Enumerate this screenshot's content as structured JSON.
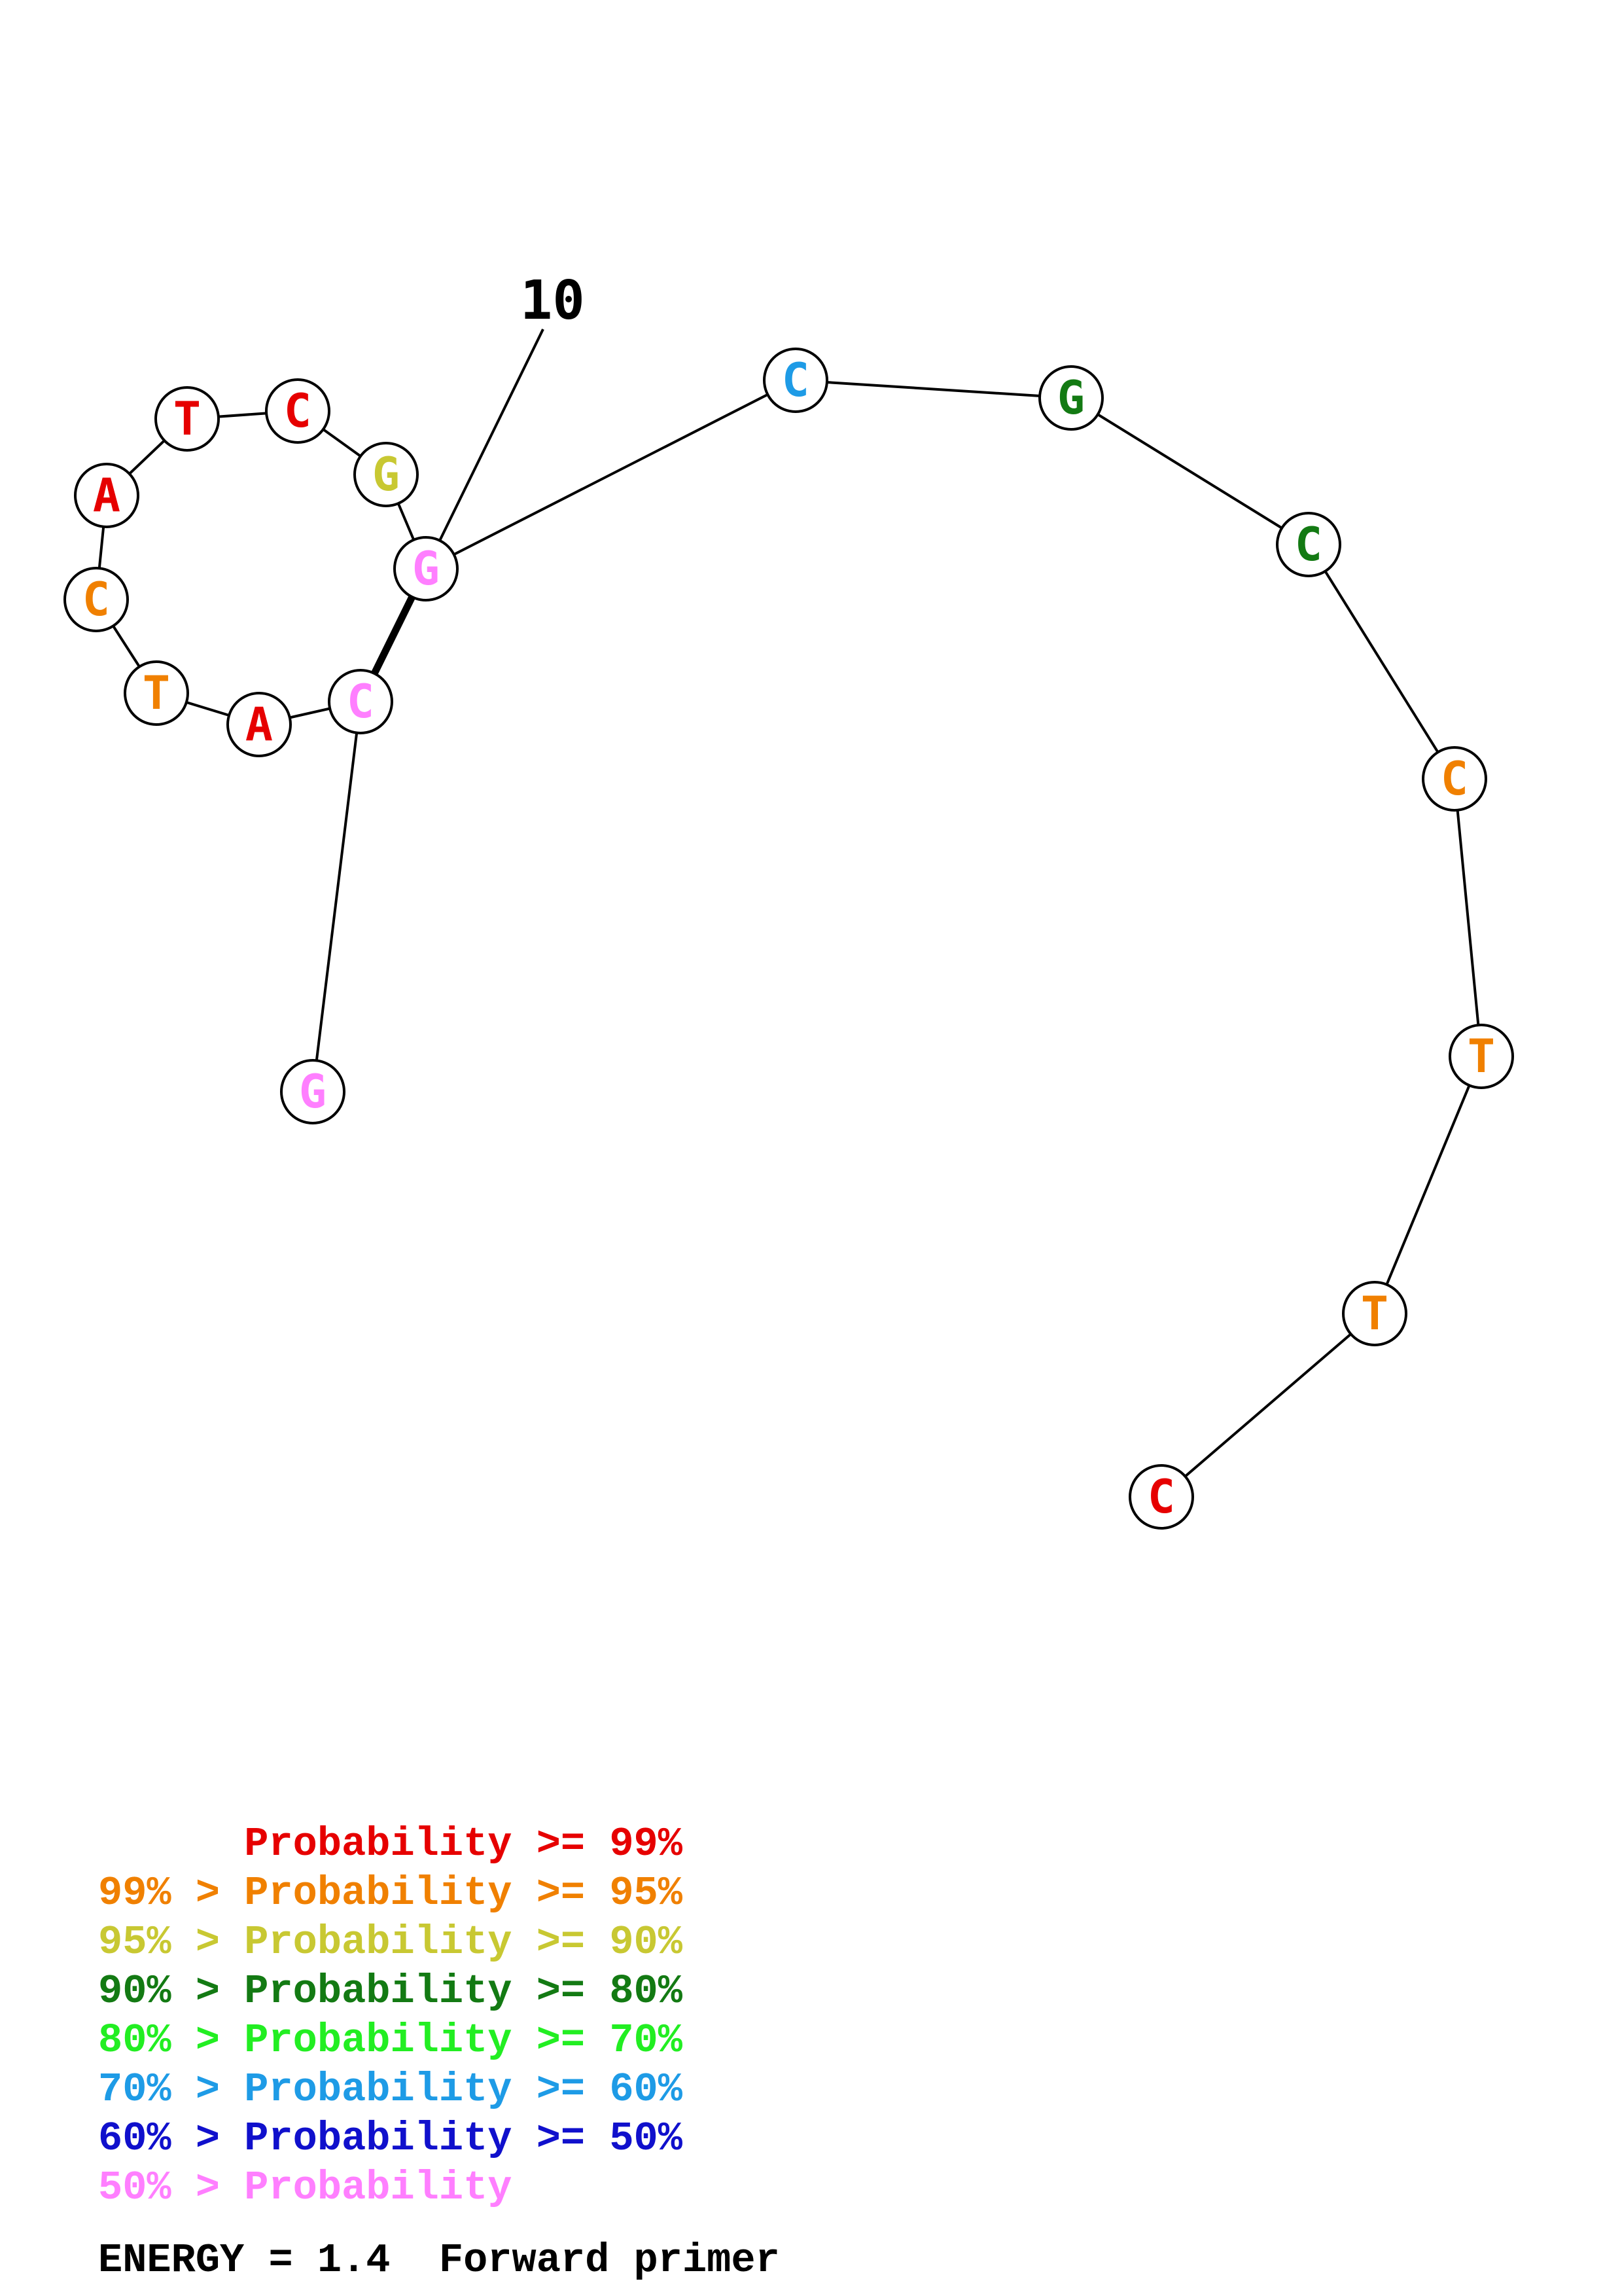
{
  "structure": {
    "position_label": "10",
    "nucleotides": [
      {
        "index": 1,
        "base": "G",
        "color": "#ff7fff"
      },
      {
        "index": 2,
        "base": "C",
        "color": "#ff7fff"
      },
      {
        "index": 3,
        "base": "A",
        "color": "#e60000"
      },
      {
        "index": 4,
        "base": "T",
        "color": "#f08000"
      },
      {
        "index": 5,
        "base": "C",
        "color": "#f08000"
      },
      {
        "index": 6,
        "base": "A",
        "color": "#e60000"
      },
      {
        "index": 7,
        "base": "T",
        "color": "#e60000"
      },
      {
        "index": 8,
        "base": "C",
        "color": "#e60000"
      },
      {
        "index": 9,
        "base": "G",
        "color": "#c8c832"
      },
      {
        "index": 10,
        "base": "G",
        "color": "#ff7fff"
      },
      {
        "index": 11,
        "base": "C",
        "color": "#1e9be6"
      },
      {
        "index": 12,
        "base": "G",
        "color": "#137a13"
      },
      {
        "index": 13,
        "base": "C",
        "color": "#137a13"
      },
      {
        "index": 14,
        "base": "C",
        "color": "#f08000"
      },
      {
        "index": 15,
        "base": "T",
        "color": "#f08000"
      },
      {
        "index": 16,
        "base": "T",
        "color": "#f08000"
      },
      {
        "index": 17,
        "base": "C",
        "color": "#e60000"
      }
    ],
    "base_pairs": [
      [
        2,
        10
      ]
    ]
  },
  "legend": [
    {
      "text": "      Probability >= 99%",
      "color": "#e60000"
    },
    {
      "text": "99% > Probability >= 95%",
      "color": "#f08000"
    },
    {
      "text": "95% > Probability >= 90%",
      "color": "#c8c832"
    },
    {
      "text": "90% > Probability >= 80%",
      "color": "#137a13"
    },
    {
      "text": "80% > Probability >= 70%",
      "color": "#22ee22"
    },
    {
      "text": "70% > Probability >= 60%",
      "color": "#1e9be6"
    },
    {
      "text": "60% > Probability >= 50%",
      "color": "#1010cc"
    },
    {
      "text": "50% > Probability",
      "color": "#ff7fff"
    }
  ],
  "footer": {
    "energy_text": "ENERGY = 1.4  Forward primer"
  }
}
